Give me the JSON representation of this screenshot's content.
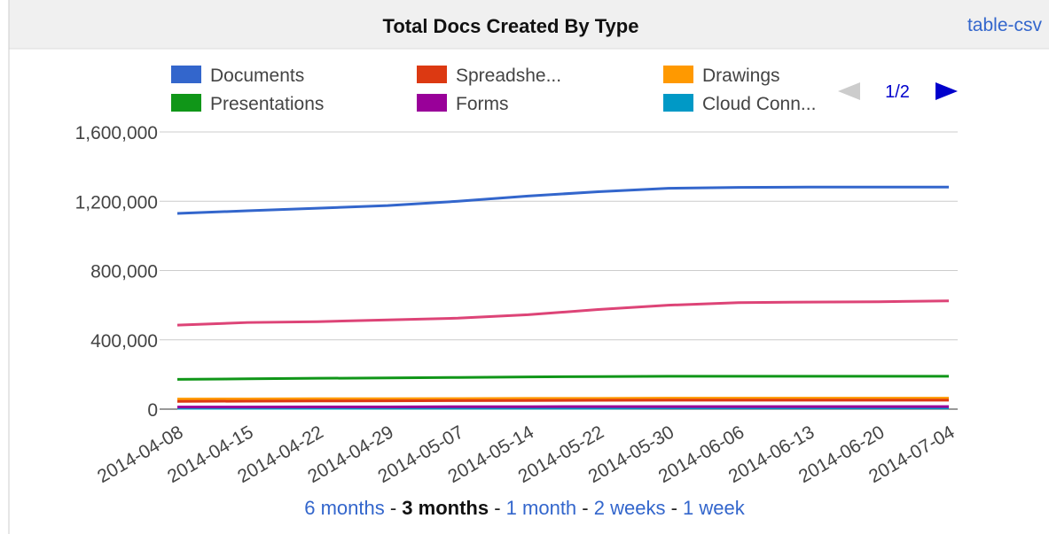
{
  "link": "table-csv",
  "pager": "1/2",
  "range_links": {
    "items": [
      "6 months",
      "3 months",
      "1 month",
      "2 weeks",
      "1 week"
    ],
    "active": 1,
    "separator": "-"
  },
  "chart_data": {
    "type": "line",
    "title": "Total Docs Created By Type",
    "categories": [
      "2014-04-08",
      "2014-04-15",
      "2014-04-22",
      "2014-04-29",
      "2014-05-07",
      "2014-05-14",
      "2014-05-22",
      "2014-05-30",
      "2014-06-06",
      "2014-06-13",
      "2014-06-20",
      "2014-07-04"
    ],
    "series": [
      {
        "name": "Documents",
        "color": "#3366cc",
        "values": [
          1130000,
          1145000,
          1160000,
          1175000,
          1200000,
          1230000,
          1255000,
          1275000,
          1280000,
          1282000,
          1282000,
          1282000
        ]
      },
      {
        "name": "Spreadshe...",
        "color": "#dc3912",
        "values": [
          45000,
          46000,
          47000,
          48000,
          49000,
          50000,
          51000,
          52000,
          52000,
          52000,
          52000,
          52000
        ]
      },
      {
        "name": "Drawings",
        "color": "#ff9900",
        "values": [
          58000,
          59000,
          60000,
          60000,
          61000,
          62000,
          62000,
          63000,
          63000,
          63000,
          63000,
          63000
        ]
      },
      {
        "name": "Presentations",
        "color": "#109618",
        "values": [
          172000,
          175000,
          178000,
          180000,
          183000,
          186000,
          188000,
          190000,
          190000,
          190000,
          190000,
          190000
        ]
      },
      {
        "name": "Forms",
        "color": "#990099",
        "values": [
          12000,
          12000,
          13000,
          13000,
          14000,
          14000,
          15000,
          15000,
          15000,
          15000,
          15000,
          15000
        ]
      },
      {
        "name": "Cloud Conn...",
        "color": "#0099c6",
        "values": [
          5000,
          5000,
          5000,
          6000,
          6000,
          6000,
          6000,
          7000,
          7000,
          7000,
          7000,
          7000
        ]
      },
      {
        "color": "#dd4477",
        "values": [
          485000,
          500000,
          505000,
          515000,
          525000,
          545000,
          575000,
          600000,
          615000,
          618000,
          620000,
          625000
        ]
      }
    ],
    "ylim": [
      0,
      1600000
    ],
    "yticks": [
      0,
      {
        "value": 400000,
        "label": "400,000"
      },
      {
        "value": 800000,
        "label": "800,000"
      },
      {
        "value": 1200000,
        "label": "1,200,000"
      },
      {
        "value": 1600000,
        "label": "1,600,000"
      }
    ],
    "grid": true
  }
}
